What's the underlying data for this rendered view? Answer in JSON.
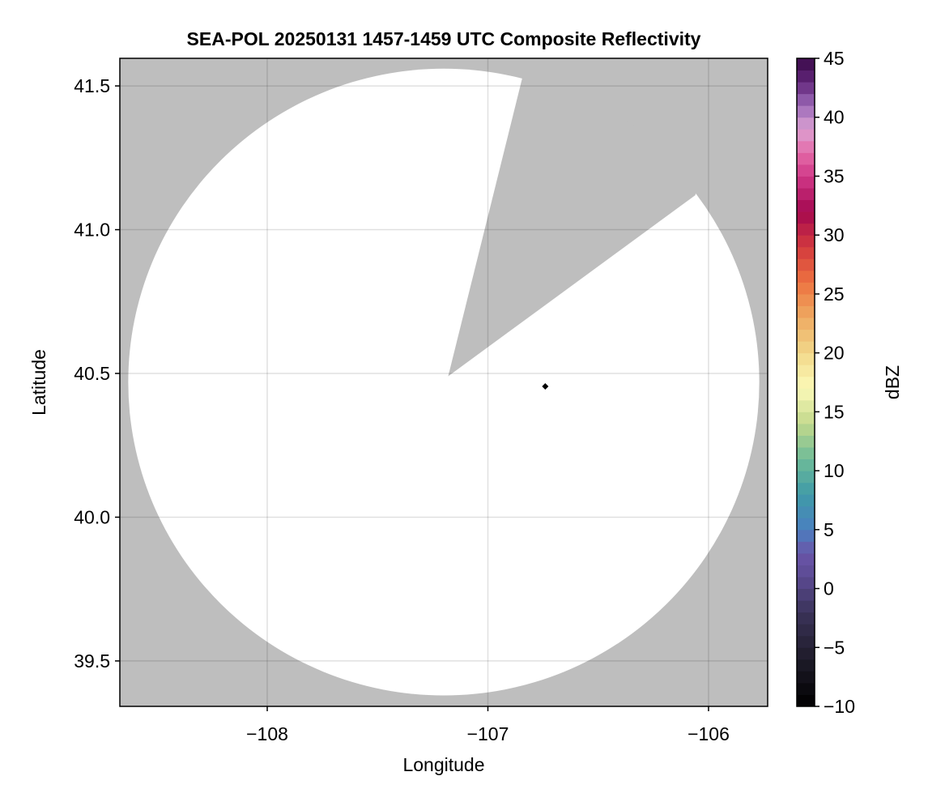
{
  "chart_data": {
    "type": "heatmap",
    "title": "SEA-POL 20250131 1457-1459 UTC Composite Reflectivity",
    "xlabel": "Longitude",
    "ylabel": "Latitude",
    "xlim": [
      -108.668,
      -105.732
    ],
    "ylim": [
      39.342,
      41.596
    ],
    "xticks": [
      -108,
      -107,
      -106
    ],
    "xtick_labels": [
      "−108",
      "−107",
      "−106"
    ],
    "yticks": [
      39.5,
      40.0,
      40.5,
      41.0,
      41.5
    ],
    "ytick_labels": [
      "39.5",
      "40.0",
      "40.5",
      "41.0",
      "41.5"
    ],
    "grid": true,
    "background_color": "#bebebe",
    "coverage_color": "#ffffff",
    "coverage_ellipse": {
      "center_lon": -107.2,
      "center_lat": 40.47,
      "radius_lon": 1.43,
      "radius_lat": 1.09
    },
    "blocked_sector": {
      "apex": [
        -107.18,
        40.49
      ],
      "edge_start": [
        -106.844,
        41.528
      ],
      "edge_end": [
        -106.06,
        41.12
      ]
    },
    "marker": {
      "lon": -106.74,
      "lat": 40.455,
      "shape": "diamond",
      "color": "#000000"
    },
    "colorbar": {
      "label": "dBZ",
      "range": [
        -10,
        45
      ],
      "ticks": [
        -10,
        -5,
        0,
        5,
        10,
        15,
        20,
        25,
        30,
        35,
        40,
        45
      ],
      "tick_labels": [
        "−10",
        "−5",
        "0",
        "5",
        "10",
        "15",
        "20",
        "25",
        "30",
        "35",
        "40",
        "45"
      ],
      "stops": [
        [
          -10,
          "#000000"
        ],
        [
          -6,
          "#1e1b29"
        ],
        [
          -2,
          "#3b3359"
        ],
        [
          1,
          "#5b4a93"
        ],
        [
          3,
          "#6a55a8"
        ],
        [
          5,
          "#4a7fc0"
        ],
        [
          8,
          "#3f9aa8"
        ],
        [
          11,
          "#6ebb98"
        ],
        [
          14,
          "#c2d98c"
        ],
        [
          17,
          "#fbf9b8"
        ],
        [
          20,
          "#f2d88a"
        ],
        [
          23,
          "#eeaa62"
        ],
        [
          26,
          "#ed7340"
        ],
        [
          29,
          "#d3393e"
        ],
        [
          32,
          "#a4084f"
        ],
        [
          35,
          "#d03888"
        ],
        [
          37,
          "#e46aa8"
        ],
        [
          39,
          "#dca2d2"
        ],
        [
          41,
          "#9c6ab8"
        ],
        [
          43,
          "#62267a"
        ],
        [
          45,
          "#3a0a48"
        ]
      ]
    }
  }
}
